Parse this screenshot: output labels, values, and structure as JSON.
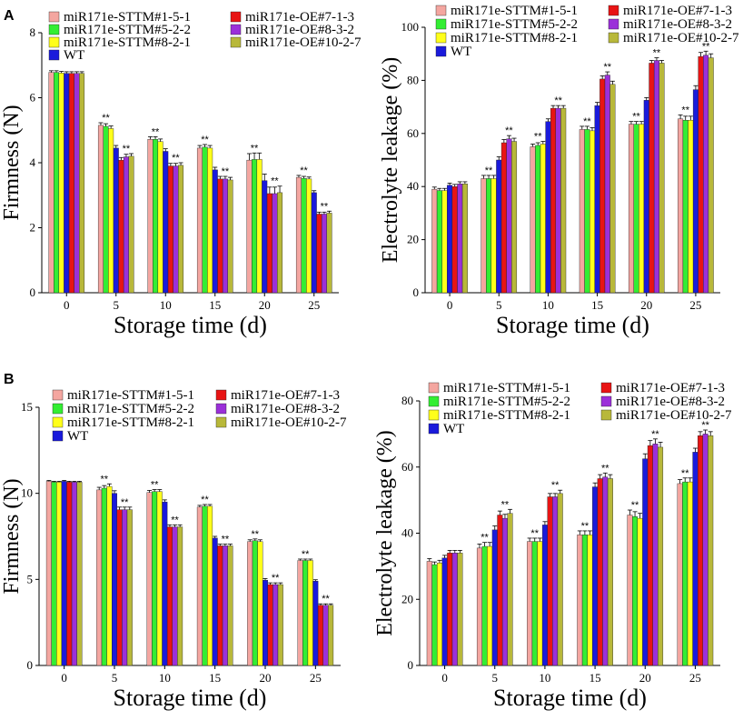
{
  "panel_labels": [
    "A",
    "B"
  ],
  "series_colors": [
    "#f4a6a0",
    "#33ee33",
    "#ffff1a",
    "#1a1adb",
    "#e81414",
    "#9b30d9",
    "#b8b83a"
  ],
  "legend_names": [
    "miR171e-STTM#1-5-1",
    "miR171e-STTM#5-2-2",
    "miR171e-STTM#8-2-1",
    "WT",
    "miR171e-OE#7-1-3",
    "miR171e-OE#8-3-2",
    "miR171e-OE#10-2-7"
  ],
  "chart_data": [
    {
      "type": "bar",
      "panel": "A",
      "xlabel": "Storage time (d)",
      "ylabel": "Firmness (N)",
      "ylim": [
        0,
        8
      ],
      "yticks": [
        "0",
        "2",
        "4",
        "6",
        "8"
      ],
      "categories": [
        "0",
        "5",
        "10",
        "15",
        "20",
        "25"
      ],
      "series": [
        {
          "name": "miR171e-STTM#1-5-1",
          "values": [
            6.78,
            5.15,
            4.72,
            4.45,
            4.08,
            3.55
          ]
        },
        {
          "name": "miR171e-STTM#5-2-2",
          "values": [
            6.78,
            5.12,
            4.72,
            4.48,
            4.1,
            3.52
          ]
        },
        {
          "name": "miR171e-STTM#8-2-1",
          "values": [
            6.76,
            5.05,
            4.65,
            4.45,
            4.1,
            3.5
          ]
        },
        {
          "name": "WT",
          "values": [
            6.75,
            4.45,
            4.35,
            3.78,
            3.45,
            3.08
          ]
        },
        {
          "name": "miR171e-OE#7-1-3",
          "values": [
            6.75,
            4.08,
            3.9,
            3.5,
            3.05,
            2.42
          ]
        },
        {
          "name": "miR171e-OE#8-3-2",
          "values": [
            6.75,
            4.18,
            3.9,
            3.5,
            3.05,
            2.42
          ]
        },
        {
          "name": "miR171e-OE#10-2-7",
          "values": [
            6.75,
            4.2,
            3.92,
            3.47,
            3.08,
            2.45
          ]
        }
      ],
      "errors": [
        0.05,
        0.08,
        0.08,
        0.08,
        0.2,
        0.06
      ],
      "annotations": [
        "",
        "**",
        "**",
        "**",
        "**",
        "**"
      ],
      "legend": {
        "position": "top-left",
        "ncols": 2
      }
    },
    {
      "type": "bar",
      "panel": "A",
      "xlabel": "Storage time (d)",
      "ylabel": "Electrolyte leakage (%)",
      "ylim": [
        0,
        100
      ],
      "yticks": [
        "0",
        "20",
        "40",
        "60",
        "80",
        "100"
      ],
      "categories": [
        "0",
        "5",
        "10",
        "15",
        "20",
        "25"
      ],
      "series": [
        {
          "name": "miR171e-STTM#1-5-1",
          "values": [
            39,
            43,
            55,
            61.5,
            63.5,
            65.5
          ]
        },
        {
          "name": "miR171e-STTM#5-2-2",
          "values": [
            38.5,
            43,
            55.5,
            61.5,
            63.5,
            65
          ]
        },
        {
          "name": "miR171e-STTM#8-2-1",
          "values": [
            38.5,
            43,
            56,
            61,
            63.5,
            65
          ]
        },
        {
          "name": "WT",
          "values": [
            40.5,
            50,
            64.5,
            70.5,
            72.5,
            76.5
          ]
        },
        {
          "name": "miR171e-OE#7-1-3",
          "values": [
            40,
            56.5,
            69.5,
            80.5,
            86.5,
            89
          ]
        },
        {
          "name": "miR171e-OE#8-3-2",
          "values": [
            41,
            58,
            69.5,
            82,
            87.5,
            89.5
          ]
        },
        {
          "name": "miR171e-OE#10-2-7",
          "values": [
            41,
            57,
            69.5,
            78.5,
            86.5,
            88.5
          ]
        }
      ],
      "errors": [
        0.8,
        1.2,
        1,
        1.2,
        1,
        1.5
      ],
      "annotations": [
        "",
        "**",
        "**",
        "**",
        "**",
        "**"
      ],
      "legend": {
        "position": "top-left",
        "ncols": 2
      }
    },
    {
      "type": "bar",
      "panel": "B",
      "xlabel": "Storage time (d)",
      "ylabel": "Firmness (N)",
      "ylim": [
        0,
        15
      ],
      "yticks": [
        "0",
        "5",
        "10",
        "15"
      ],
      "categories": [
        "0",
        "5",
        "10",
        "15",
        "20",
        "25"
      ],
      "series": [
        {
          "name": "miR171e-STTM#1-5-1",
          "values": [
            10.7,
            10.2,
            10.05,
            9.2,
            7.2,
            6.1
          ]
        },
        {
          "name": "miR171e-STTM#5-2-2",
          "values": [
            10.65,
            10.3,
            10.1,
            9.25,
            7.25,
            6.1
          ]
        },
        {
          "name": "miR171e-STTM#8-2-1",
          "values": [
            10.65,
            10.4,
            10.1,
            9.25,
            7.2,
            6.1
          ]
        },
        {
          "name": "WT",
          "values": [
            10.7,
            10.0,
            9.5,
            7.4,
            4.95,
            4.9
          ]
        },
        {
          "name": "miR171e-OE#7-1-3",
          "values": [
            10.65,
            9.05,
            8.05,
            6.95,
            4.7,
            3.5
          ]
        },
        {
          "name": "miR171e-OE#8-3-2",
          "values": [
            10.65,
            9.05,
            8.05,
            6.95,
            4.7,
            3.5
          ]
        },
        {
          "name": "miR171e-OE#10-2-7",
          "values": [
            10.65,
            9.05,
            8.05,
            6.95,
            4.7,
            3.5
          ]
        }
      ],
      "errors": [
        0.05,
        0.15,
        0.12,
        0.1,
        0.1,
        0.08
      ],
      "annotations": [
        "",
        "**",
        "**",
        "**",
        "**",
        "**"
      ],
      "legend": {
        "position": "top-right",
        "ncols": 2
      }
    },
    {
      "type": "bar",
      "panel": "B",
      "xlabel": "Storage time (d)",
      "ylabel": "Electrolyte leakage (%)",
      "ylim": [
        0,
        80
      ],
      "yticks": [
        "0",
        "20",
        "40",
        "60",
        "80"
      ],
      "categories": [
        "0",
        "5",
        "10",
        "15",
        "20",
        "25"
      ],
      "series": [
        {
          "name": "miR171e-STTM#1-5-1",
          "values": [
            31.5,
            35.5,
            37.5,
            39.5,
            45.5,
            55
          ]
        },
        {
          "name": "miR171e-STTM#5-2-2",
          "values": [
            30.5,
            36,
            37.5,
            39.5,
            45,
            55.5
          ]
        },
        {
          "name": "miR171e-STTM#8-2-1",
          "values": [
            31,
            36,
            37.5,
            39.5,
            44.5,
            55.5
          ]
        },
        {
          "name": "WT",
          "values": [
            32.5,
            41,
            42.5,
            54,
            62.5,
            64.5
          ]
        },
        {
          "name": "miR171e-OE#7-1-3",
          "values": [
            34,
            45.5,
            51,
            56.5,
            66.5,
            69.5
          ]
        },
        {
          "name": "miR171e-OE#8-3-2",
          "values": [
            34,
            44.5,
            51,
            57,
            67,
            70
          ]
        },
        {
          "name": "miR171e-OE#10-2-7",
          "values": [
            34,
            46,
            52,
            56.5,
            66,
            69.5
          ]
        }
      ],
      "errors": [
        0.8,
        1.2,
        1,
        1.2,
        1.5,
        1.2
      ],
      "annotations": [
        "",
        "**",
        "**",
        "**",
        "**",
        "**"
      ],
      "legend": {
        "position": "top-left",
        "ncols": 2
      }
    }
  ]
}
